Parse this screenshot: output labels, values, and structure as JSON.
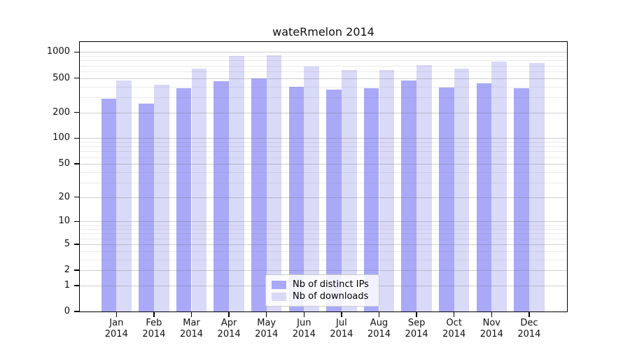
{
  "title": "wateRmelon 2014",
  "colors": {
    "bar_distinct_ips": "#a9a9f8",
    "bar_downloads": "#d9d9f8",
    "frame": "#000000",
    "background": "#ffffff"
  },
  "y_axis": {
    "scale": "log1p",
    "ticks": [
      0,
      1,
      2,
      5,
      10,
      20,
      50,
      100,
      200,
      500,
      1000
    ]
  },
  "x_axis": {
    "year_line": "2014"
  },
  "legend": {
    "position": "lower-center",
    "items": [
      {
        "label": "Nb of distinct IPs",
        "color": "#a9a9f8"
      },
      {
        "label": "Nb of downloads",
        "color": "#d9d9f8"
      }
    ]
  },
  "chart_data": {
    "type": "bar",
    "title": "wateRmelon 2014",
    "categories": [
      "Jan",
      "Feb",
      "Mar",
      "Apr",
      "May",
      "Jun",
      "Jul",
      "Aug",
      "Sep",
      "Oct",
      "Nov",
      "Dec"
    ],
    "year": "2014",
    "series": [
      {
        "name": "Nb of distinct IPs",
        "color": "#a9a9f8",
        "values": [
          290,
          255,
          380,
          460,
          500,
          395,
          365,
          380,
          470,
          390,
          435,
          380
        ]
      },
      {
        "name": "Nb of downloads",
        "color": "#d9d9f8",
        "values": [
          470,
          420,
          640,
          900,
          920,
          680,
          615,
          620,
          705,
          640,
          780,
          750
        ]
      }
    ],
    "xlabel": "",
    "ylabel": "",
    "yscale": "log1p",
    "yticks": [
      0,
      1,
      2,
      5,
      10,
      20,
      50,
      100,
      200,
      500,
      1000
    ],
    "ylim": [
      0,
      1330
    ],
    "grid": true,
    "grid_over_bars": true,
    "legend_position": "lower-center"
  }
}
